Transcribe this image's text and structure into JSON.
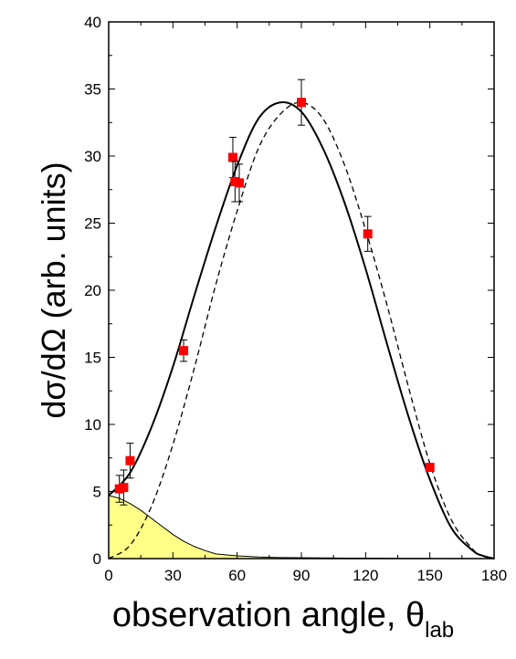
{
  "chart_data": {
    "type": "scatter",
    "title": "",
    "xlabel": "observation angle, θ",
    "xlabel_subscript": "lab",
    "ylabel": "dσ/dΩ (arb. units)",
    "xlim": [
      0,
      180
    ],
    "ylim": [
      0,
      40
    ],
    "xticks": [
      0,
      30,
      60,
      90,
      120,
      150,
      180
    ],
    "yticks": [
      0,
      5,
      10,
      15,
      20,
      25,
      30,
      35,
      40
    ],
    "grid": false,
    "legend": "none",
    "colors": {
      "points": "#ff0000",
      "fill": "#ffff88",
      "axes": "#000000"
    },
    "series": [
      {
        "type": "scatter-errorbars",
        "points": [
          {
            "x": 5,
            "y": 5.2,
            "err": 1.0
          },
          {
            "x": 7,
            "y": 5.3,
            "err": 1.3
          },
          {
            "x": 10,
            "y": 7.3,
            "err": 1.3
          },
          {
            "x": 35,
            "y": 15.5,
            "err": 0.8
          },
          {
            "x": 58,
            "y": 29.9,
            "err": 1.5
          },
          {
            "x": 59,
            "y": 28.1,
            "err": 1.5
          },
          {
            "x": 61,
            "y": 28.0,
            "err": 1.4
          },
          {
            "x": 90,
            "y": 34.0,
            "err": 1.7
          },
          {
            "x": 121,
            "y": 24.2,
            "err": 1.3
          },
          {
            "x": 150,
            "y": 6.8,
            "err": 0.3
          }
        ]
      },
      {
        "type": "line-solid",
        "x": [
          0,
          10,
          20,
          30,
          40,
          50,
          60,
          70,
          80,
          90,
          100,
          110,
          120,
          130,
          140,
          150,
          160,
          170,
          175,
          180
        ],
        "y": [
          4.7,
          6.4,
          9.8,
          14.3,
          19.6,
          24.7,
          29.3,
          32.8,
          34.0,
          33.3,
          30.6,
          26.6,
          21.6,
          16.0,
          10.6,
          5.9,
          2.3,
          0.6,
          0.2,
          0
        ]
      },
      {
        "type": "line-dashed",
        "x": [
          0,
          10,
          20,
          30,
          40,
          50,
          60,
          70,
          80,
          90,
          100,
          110,
          120,
          130,
          140,
          150,
          160,
          170,
          175,
          180
        ],
        "y": [
          0,
          1.0,
          3.9,
          8.5,
          14.2,
          20.4,
          25.9,
          30.6,
          33.1,
          34.0,
          32.8,
          29.4,
          24.5,
          18.9,
          12.8,
          7.1,
          2.9,
          0.7,
          0.2,
          0
        ]
      },
      {
        "type": "area-filled",
        "x": [
          0,
          5,
          10,
          15,
          20,
          25,
          30,
          35,
          40,
          45,
          50,
          60,
          70,
          80,
          100,
          120,
          140,
          160,
          180
        ],
        "y": [
          4.7,
          4.5,
          4.1,
          3.6,
          3.0,
          2.4,
          1.8,
          1.3,
          0.9,
          0.6,
          0.35,
          0.2,
          0.12,
          0.08,
          0.05,
          0.03,
          0.02,
          0.01,
          0
        ]
      }
    ]
  }
}
